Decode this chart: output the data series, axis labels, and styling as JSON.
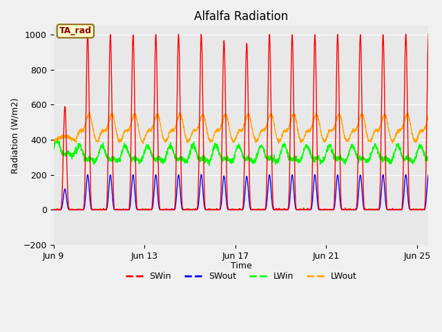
{
  "title": "Alfalfa Radiation",
  "ylabel": "Radiation (W/m2)",
  "xlabel": "Time",
  "annotation_label": "TA_rad",
  "legend_labels": [
    "SWin",
    "SWout",
    "LWin",
    "LWout"
  ],
  "legend_colors": [
    "#ff0000",
    "#0000ff",
    "#00ff00",
    "#ffa500"
  ],
  "ylim": [
    -200,
    1050
  ],
  "fig_bg_color": "#f0f0f0",
  "plot_bg_color": "#e8e8e8",
  "x_tick_labels": [
    "Jun 9",
    "Jun 13",
    "Jun 17",
    "Jun 21",
    "Jun 25"
  ],
  "x_tick_positions": [
    0,
    4,
    8,
    12,
    16
  ],
  "n_days": 17,
  "points_per_day": 144
}
